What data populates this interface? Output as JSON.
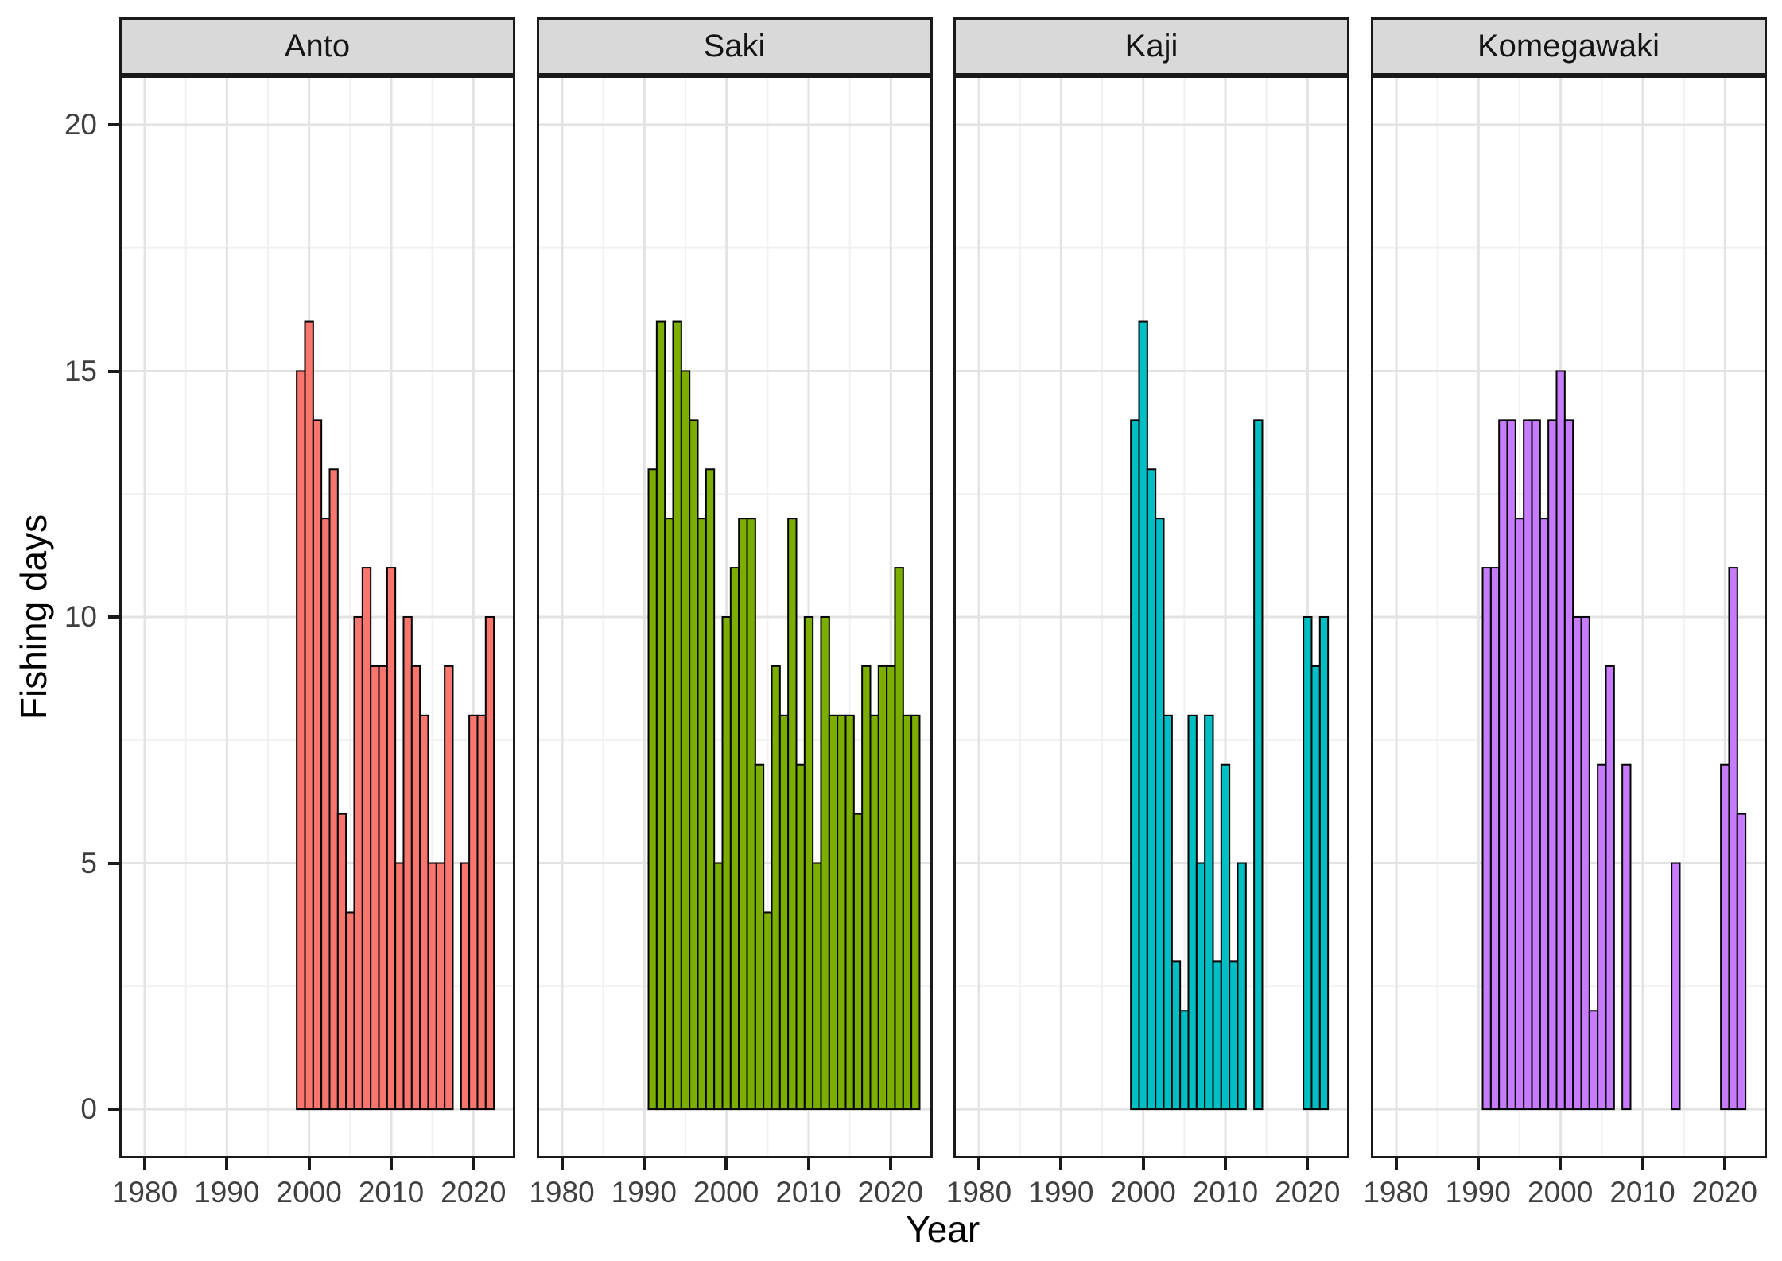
{
  "chart_data": {
    "type": "bar",
    "title": "",
    "xlabel": "Year",
    "ylabel": "Fishing days",
    "legend_position": "none",
    "grid": "major+minor",
    "bar_width_years": 1,
    "x_range": [
      1976.9,
      2025.1
    ],
    "y_range": [
      -1,
      21
    ],
    "x_ticks": [
      {
        "label": "1980",
        "value": 1980
      },
      {
        "label": "1990",
        "value": 1990
      },
      {
        "label": "2000",
        "value": 2000
      },
      {
        "label": "2010",
        "value": 2010
      },
      {
        "label": "2020",
        "value": 2020
      }
    ],
    "y_ticks": [
      {
        "label": "0",
        "value": 0
      },
      {
        "label": "5",
        "value": 5
      },
      {
        "label": "10",
        "value": 10
      },
      {
        "label": "15",
        "value": 15
      },
      {
        "label": "20",
        "value": 20
      }
    ],
    "x_minor_gridlines": [
      1985,
      1995,
      2005,
      2015,
      2025
    ],
    "y_minor_gridlines": [
      2.5,
      7.5,
      12.5,
      17.5
    ],
    "facets": [
      {
        "label": "Anto",
        "fill": "#F8766D",
        "years": [
          1999,
          2000,
          2001,
          2002,
          2003,
          2004,
          2005,
          2006,
          2007,
          2008,
          2009,
          2010,
          2011,
          2012,
          2013,
          2014,
          2015,
          2016,
          2017,
          2019,
          2020,
          2021,
          2022
        ],
        "values": [
          15,
          16,
          14,
          12,
          13,
          6,
          4,
          10,
          11,
          9,
          9,
          11,
          5,
          10,
          9,
          8,
          5,
          5,
          9,
          5,
          8,
          8,
          10
        ]
      },
      {
        "label": "Saki",
        "fill": "#7CAE00",
        "years": [
          1991,
          1992,
          1993,
          1994,
          1995,
          1996,
          1997,
          1998,
          1999,
          2000,
          2001,
          2002,
          2003,
          2004,
          2005,
          2006,
          2007,
          2008,
          2009,
          2010,
          2011,
          2012,
          2013,
          2014,
          2015,
          2016,
          2017,
          2018,
          2019,
          2020,
          2021,
          2022,
          2023
        ],
        "values": [
          13,
          16,
          12,
          16,
          15,
          14,
          12,
          13,
          5,
          10,
          11,
          12,
          12,
          7,
          4,
          9,
          8,
          12,
          7,
          10,
          5,
          10,
          8,
          8,
          8,
          6,
          9,
          8,
          9,
          9,
          11,
          8,
          8
        ]
      },
      {
        "label": "Kaji",
        "fill": "#00BFC4",
        "years": [
          1999,
          2000,
          2001,
          2002,
          2003,
          2004,
          2005,
          2006,
          2007,
          2008,
          2009,
          2010,
          2011,
          2012,
          2014,
          2020,
          2021,
          2022
        ],
        "values": [
          14,
          16,
          13,
          12,
          8,
          3,
          2,
          8,
          5,
          8,
          3,
          7,
          3,
          5,
          14,
          10,
          9,
          10
        ]
      },
      {
        "label": "Komegawaki",
        "fill": "#C77CFF",
        "years": [
          1991,
          1992,
          1993,
          1994,
          1995,
          1996,
          1997,
          1998,
          1999,
          2000,
          2001,
          2002,
          2003,
          2004,
          2005,
          2006,
          2008,
          2014,
          2020,
          2021,
          2022
        ],
        "values": [
          11,
          11,
          14,
          14,
          12,
          14,
          14,
          12,
          14,
          15,
          14,
          10,
          10,
          2,
          7,
          9,
          7,
          5,
          7,
          11,
          6
        ]
      }
    ]
  },
  "styles": {
    "background": "#FFFFFF",
    "strip_bg": "#D9D9D9",
    "strip_border": "#1A1A1A",
    "panel_border": "#1A1A1A",
    "grid_major": "#E3E3E3",
    "grid_minor": "#F1F1F1",
    "bar_stroke": "#000000",
    "tick_color": "#1A1A1A",
    "tick_label_color": "#3F3F3F",
    "axis_title_color": "#000000"
  }
}
